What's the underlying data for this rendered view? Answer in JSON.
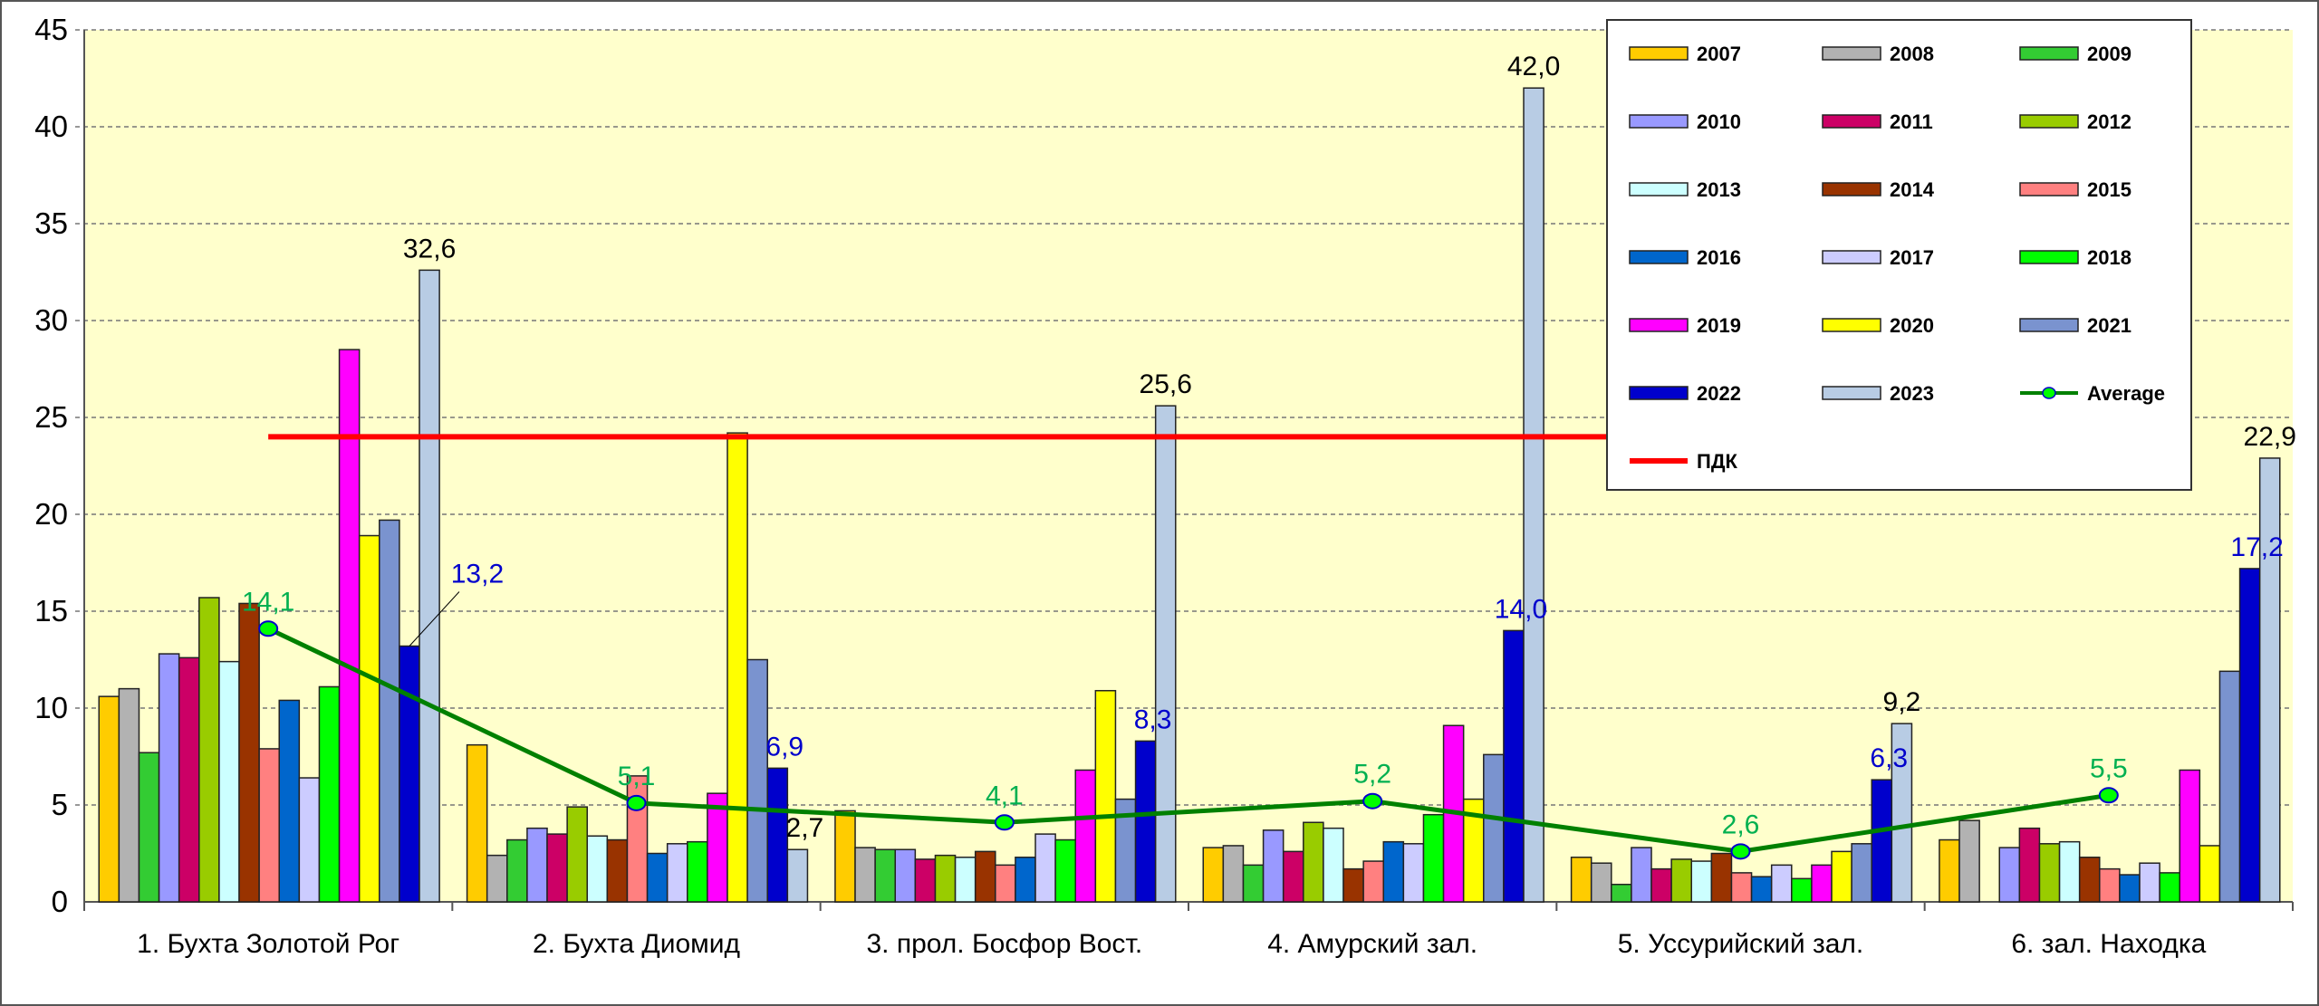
{
  "chart_data": {
    "type": "bar",
    "title": "",
    "xlabel": "",
    "ylabel": "",
    "ylim": [
      0,
      45
    ],
    "yticks": [
      0,
      5,
      10,
      15,
      20,
      25,
      30,
      35,
      40,
      45
    ],
    "grid": true,
    "legend_position": "top-right",
    "categories": [
      "1. Бухта Золотой Рог",
      "2. Бухта Диомид",
      "3. прол. Босфор Вост.",
      "4. Амурский зал.",
      "5. Уссурийский зал.",
      "6. зал. Находка"
    ],
    "series": [
      {
        "name": "2007",
        "color": "#FFCC00",
        "values": [
          10.6,
          8.1,
          4.7,
          2.8,
          2.3,
          3.2
        ]
      },
      {
        "name": "2008",
        "color": "#B2B2B2",
        "values": [
          11.0,
          2.4,
          2.8,
          2.9,
          2.0,
          4.2
        ]
      },
      {
        "name": "2009",
        "color": "#33CC33",
        "values": [
          7.7,
          3.2,
          2.7,
          1.9,
          0.9,
          null
        ]
      },
      {
        "name": "2010",
        "color": "#9999FF",
        "values": [
          12.8,
          3.8,
          2.7,
          3.7,
          2.8,
          2.8
        ]
      },
      {
        "name": "2011",
        "color": "#CC0066",
        "values": [
          12.6,
          3.5,
          2.2,
          2.6,
          1.7,
          3.8
        ]
      },
      {
        "name": "2012",
        "color": "#99CC00",
        "values": [
          15.7,
          4.9,
          2.4,
          4.1,
          2.2,
          3.0
        ]
      },
      {
        "name": "2013",
        "color": "#CCFFFF",
        "values": [
          12.4,
          3.4,
          2.3,
          3.8,
          2.1,
          3.1
        ]
      },
      {
        "name": "2014",
        "color": "#993300",
        "values": [
          15.4,
          3.2,
          2.6,
          1.7,
          2.5,
          2.3
        ]
      },
      {
        "name": "2015",
        "color": "#FF8080",
        "values": [
          7.9,
          6.5,
          1.9,
          2.1,
          1.5,
          1.7
        ]
      },
      {
        "name": "2016",
        "color": "#0066CC",
        "values": [
          10.4,
          2.5,
          2.3,
          3.1,
          1.3,
          1.4
        ]
      },
      {
        "name": "2017",
        "color": "#CCCCFF",
        "values": [
          6.4,
          3.0,
          3.5,
          3.0,
          1.9,
          2.0
        ]
      },
      {
        "name": "2018",
        "color": "#00FF00",
        "values": [
          11.1,
          3.1,
          3.2,
          4.5,
          1.2,
          1.5
        ]
      },
      {
        "name": "2019",
        "color": "#FF00FF",
        "values": [
          28.5,
          5.6,
          6.8,
          9.1,
          1.9,
          6.8
        ]
      },
      {
        "name": "2020",
        "color": "#FFFF00",
        "values": [
          18.9,
          24.2,
          10.9,
          5.3,
          2.6,
          2.9
        ]
      },
      {
        "name": "2021",
        "color": "#7A93CF",
        "values": [
          19.7,
          12.5,
          5.3,
          7.6,
          3.0,
          11.9
        ]
      },
      {
        "name": "2022",
        "color": "#0000CC",
        "values": [
          13.2,
          6.9,
          8.3,
          14.0,
          6.3,
          17.2
        ],
        "labels": [
          "13,2",
          "6,9",
          "8,3",
          "14,0",
          "6,3",
          "17,2"
        ],
        "label_color": "#0000CC"
      },
      {
        "name": "2023",
        "color": "#B8CCE4",
        "values": [
          32.6,
          2.7,
          25.6,
          42.0,
          9.2,
          22.9
        ],
        "labels": [
          "32,6",
          "2,7",
          "25,6",
          "42,0",
          "9,2",
          "22,9"
        ],
        "label_color": "#000000"
      }
    ],
    "average": {
      "name": "Average",
      "type": "line",
      "color": "#008000",
      "marker_color": "#00FF00",
      "values": [
        14.1,
        5.1,
        4.1,
        5.2,
        2.6,
        5.5
      ],
      "labels": [
        "14,1",
        "5,1",
        "4,1",
        "5,2",
        "2,6",
        "5,5"
      ],
      "label_color": "#00B050"
    },
    "limit": {
      "name": "ПДК",
      "value": 24,
      "color": "#FF0000"
    }
  }
}
